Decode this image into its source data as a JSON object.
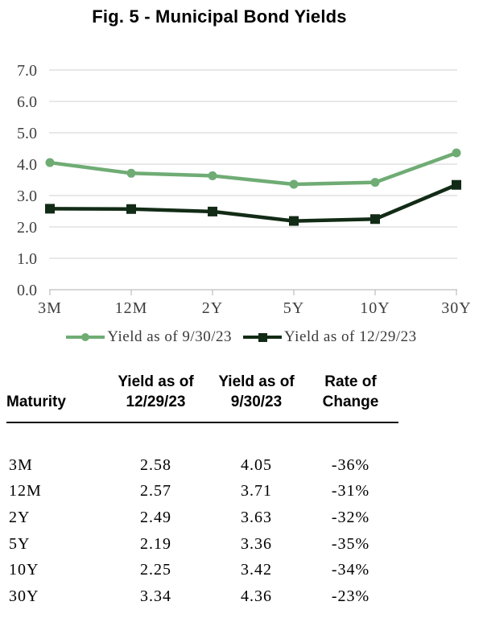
{
  "title": "Fig. 5 - Municipal Bond Yields",
  "chart_data": {
    "type": "line",
    "title": "Fig. 5 - Municipal Bond Yields",
    "categories": [
      "3M",
      "12M",
      "2Y",
      "5Y",
      "10Y",
      "30Y"
    ],
    "series": [
      {
        "name": "Yield as of 9/30/23",
        "values": [
          4.05,
          3.71,
          3.63,
          3.36,
          3.42,
          4.36
        ],
        "color": "#6FAC74",
        "marker": "circle"
      },
      {
        "name": "Yield as of 12/29/23",
        "values": [
          2.58,
          2.57,
          2.49,
          2.19,
          2.25,
          3.34
        ],
        "color": "#122B16",
        "marker": "square"
      }
    ],
    "xlabel": "",
    "ylabel": "",
    "ylim": [
      0,
      7
    ],
    "ytick_labels": [
      "0.0",
      "1.0",
      "2.0",
      "3.0",
      "4.0",
      "5.0",
      "6.0",
      "7.0"
    ],
    "grid": true,
    "legend_position": "bottom",
    "gridline_color": "#d9d9d9",
    "axis_line_color": "#bfbfbf",
    "tick_label_color": "#3f3f3f"
  },
  "table": {
    "headers": [
      "Maturity",
      "Yield as of\n12/29/23",
      "Yield as of\n9/30/23",
      "Rate of\nChange"
    ],
    "rows": [
      [
        "3M",
        "2.58",
        "4.05",
        "-36%"
      ],
      [
        "12M",
        "2.57",
        "3.71",
        "-31%"
      ],
      [
        "2Y",
        "2.49",
        "3.63",
        "-32%"
      ],
      [
        "5Y",
        "2.19",
        "3.36",
        "-35%"
      ],
      [
        "10Y",
        "2.25",
        "3.42",
        "-34%"
      ],
      [
        "30Y",
        "3.34",
        "4.36",
        "-23%"
      ]
    ]
  }
}
